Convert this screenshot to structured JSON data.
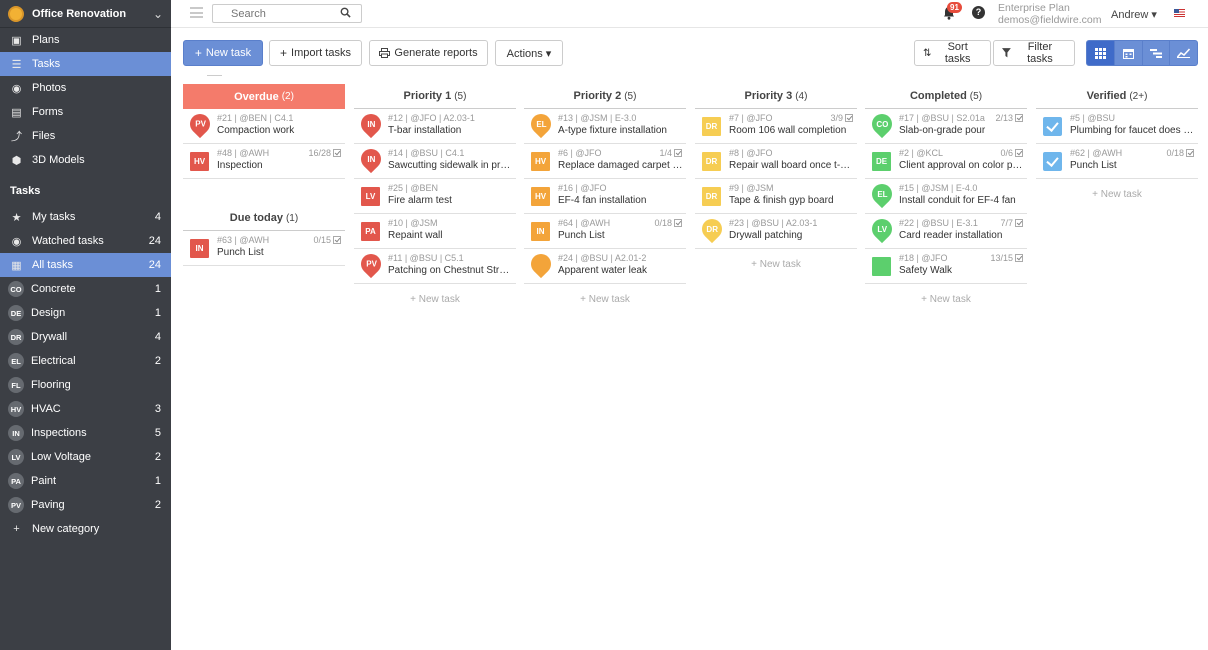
{
  "project": {
    "name": "Office Renovation"
  },
  "nav": [
    {
      "id": "plans",
      "label": "Plans",
      "icon": "map-icon"
    },
    {
      "id": "tasks",
      "label": "Tasks",
      "icon": "list-icon",
      "active": true
    },
    {
      "id": "photos",
      "label": "Photos",
      "icon": "camera-icon"
    },
    {
      "id": "forms",
      "label": "Forms",
      "icon": "form-icon"
    },
    {
      "id": "files",
      "label": "Files",
      "icon": "paperclip-icon"
    },
    {
      "id": "models",
      "label": "3D Models",
      "icon": "cube-icon"
    }
  ],
  "tasks_section": {
    "title": "Tasks",
    "items": [
      {
        "id": "my",
        "label": "My tasks",
        "count": "4",
        "icon": "star-icon"
      },
      {
        "id": "watched",
        "label": "Watched tasks",
        "count": "24",
        "icon": "eye-icon"
      },
      {
        "id": "all",
        "label": "All tasks",
        "count": "24",
        "icon": "grid-icon",
        "active": true
      }
    ],
    "categories": [
      {
        "abbr": "CO",
        "label": "Concrete",
        "count": "1"
      },
      {
        "abbr": "DE",
        "label": "Design",
        "count": "1"
      },
      {
        "abbr": "DR",
        "label": "Drywall",
        "count": "4"
      },
      {
        "abbr": "EL",
        "label": "Electrical",
        "count": "2"
      },
      {
        "abbr": "FL",
        "label": "Flooring",
        "count": ""
      },
      {
        "abbr": "HV",
        "label": "HVAC",
        "count": "3"
      },
      {
        "abbr": "IN",
        "label": "Inspections",
        "count": "5"
      },
      {
        "abbr": "LV",
        "label": "Low Voltage",
        "count": "2"
      },
      {
        "abbr": "PA",
        "label": "Paint",
        "count": "1"
      },
      {
        "abbr": "PV",
        "label": "Paving",
        "count": "2"
      }
    ],
    "new_category": "New category"
  },
  "topbar": {
    "search_placeholder": "Search",
    "notifications": "91",
    "help": "?",
    "plan_line1": "Enterprise Plan",
    "plan_line2": "demos@fieldwire.com",
    "user": "Andrew ▾"
  },
  "toolbar": {
    "new_task": "New task",
    "import_tasks": "Import tasks",
    "generate_reports": "Generate reports",
    "actions": "Actions ▾",
    "sort_tasks": "Sort tasks",
    "filter_tasks": "Filter tasks"
  },
  "colors": {
    "CO": "#5ccf6d",
    "DE": "#5ccf6d",
    "DR": "#f6cd53",
    "EL": "#5ccf6d",
    "HV": "#f3a43a",
    "IN": "#e2574c",
    "LV": "#e2574c",
    "PA": "#e2574c",
    "PV": "#e2574c",
    "green": "#5ccf6d",
    "orange": "#f3a43a",
    "yellow": "#f6cd53",
    "red": "#e2574c"
  },
  "new_task_label": "+ New task",
  "columns": [
    {
      "title": "Overdue",
      "count": "(2)",
      "style": "overdue",
      "cards": [
        {
          "abbr": "PV",
          "shape": "pin",
          "color": "red",
          "meta": "#21 | @BEN | C4.1",
          "title": "Compaction work",
          "prog": ""
        },
        {
          "abbr": "HV",
          "shape": "sq",
          "color": "red",
          "meta": "#48 | @AWH",
          "title": "Inspection",
          "prog": "16/28"
        }
      ],
      "subgroup": {
        "title": "Due today",
        "count": "(1)",
        "cards": [
          {
            "abbr": "IN",
            "shape": "sq",
            "color": "red",
            "meta": "#63 | @AWH",
            "title": "Punch List",
            "prog": "0/15"
          }
        ]
      },
      "show_new": false
    },
    {
      "title": "Priority 1",
      "count": "(5)",
      "cards": [
        {
          "abbr": "IN",
          "shape": "pin",
          "color": "red",
          "meta": "#12 | @JFO | A2.03-1",
          "title": "T-bar installation",
          "prog": ""
        },
        {
          "abbr": "IN",
          "shape": "pin",
          "color": "red",
          "meta": "#14 | @BSU | C4.1",
          "title": "Sawcutting sidewalk in pro...",
          "prog": ""
        },
        {
          "abbr": "LV",
          "shape": "sq",
          "color": "red",
          "meta": "#25 | @BEN",
          "title": "Fire alarm test",
          "prog": ""
        },
        {
          "abbr": "PA",
          "shape": "sq",
          "color": "red",
          "meta": "#10 | @JSM",
          "title": "Repaint wall",
          "prog": ""
        },
        {
          "abbr": "PV",
          "shape": "pin",
          "color": "red",
          "meta": "#11 | @BSU | C5.1",
          "title": "Patching on Chestnut Street",
          "prog": ""
        }
      ],
      "show_new": true
    },
    {
      "title": "Priority 2",
      "count": "(5)",
      "cards": [
        {
          "abbr": "EL",
          "shape": "pin",
          "color": "orange",
          "meta": "#13 | @JSM | E-3.0",
          "title": "A-type fixture installation",
          "prog": ""
        },
        {
          "abbr": "HV",
          "shape": "sq",
          "color": "orange",
          "meta": "#6 | @JFO",
          "title": "Replace damaged carpet tile",
          "prog": "1/4"
        },
        {
          "abbr": "HV",
          "shape": "sq",
          "color": "orange",
          "meta": "#16 | @JFO",
          "title": "EF-4 fan installation",
          "prog": ""
        },
        {
          "abbr": "IN",
          "shape": "sq",
          "color": "orange",
          "meta": "#64 | @AWH",
          "title": "Punch List",
          "prog": "0/18"
        },
        {
          "abbr": "",
          "shape": "pin",
          "color": "orange",
          "meta": "#24 | @BSU | A2.01-2",
          "title": "Apparent water leak",
          "prog": ""
        }
      ],
      "show_new": true
    },
    {
      "title": "Priority 3",
      "count": "(4)",
      "cards": [
        {
          "abbr": "DR",
          "shape": "sq",
          "color": "yellow",
          "meta": "#7 | @JFO",
          "title": "Room 106 wall completion",
          "prog": "3/9"
        },
        {
          "abbr": "DR",
          "shape": "sq",
          "color": "yellow",
          "meta": "#8 | @JFO",
          "title": "Repair wall board once t-st...",
          "prog": ""
        },
        {
          "abbr": "DR",
          "shape": "sq",
          "color": "yellow",
          "meta": "#9 | @JSM",
          "title": "Tape & finish gyp board",
          "prog": ""
        },
        {
          "abbr": "DR",
          "shape": "pin",
          "color": "yellow",
          "meta": "#23 | @BSU | A2.03-1",
          "title": "Drywall patching",
          "prog": ""
        }
      ],
      "show_new": true
    },
    {
      "title": "Completed",
      "count": "(5)",
      "cards": [
        {
          "abbr": "CO",
          "shape": "pin",
          "color": "green",
          "meta": "#17 | @BSU | S2.01a",
          "title": "Slab-on-grade pour",
          "prog": "2/13"
        },
        {
          "abbr": "DE",
          "shape": "sq",
          "color": "green",
          "meta": "#2 | @KCL",
          "title": "Client approval on color pa...",
          "prog": "0/6"
        },
        {
          "abbr": "EL",
          "shape": "pin",
          "color": "green",
          "meta": "#15 | @JSM | E-4.0",
          "title": "Install conduit for EF-4 fan",
          "prog": ""
        },
        {
          "abbr": "LV",
          "shape": "pin",
          "color": "green",
          "meta": "#22 | @BSU | E-3.1",
          "title": "Card reader installation",
          "prog": "7/7"
        },
        {
          "abbr": "",
          "shape": "sq",
          "color": "green",
          "meta": "#18 | @JFO",
          "title": "Safety Walk",
          "prog": "13/15"
        }
      ],
      "show_new": true
    },
    {
      "title": "Verified",
      "count": "(2+)",
      "cards": [
        {
          "abbr": "",
          "shape": "check",
          "color": "blue",
          "meta": "#5 | @BSU",
          "title": "Plumbing for faucet does n...",
          "prog": ""
        },
        {
          "abbr": "",
          "shape": "check",
          "color": "blue",
          "meta": "#62 | @AWH",
          "title": "Punch List",
          "prog": "0/18"
        }
      ],
      "show_new": true
    }
  ]
}
